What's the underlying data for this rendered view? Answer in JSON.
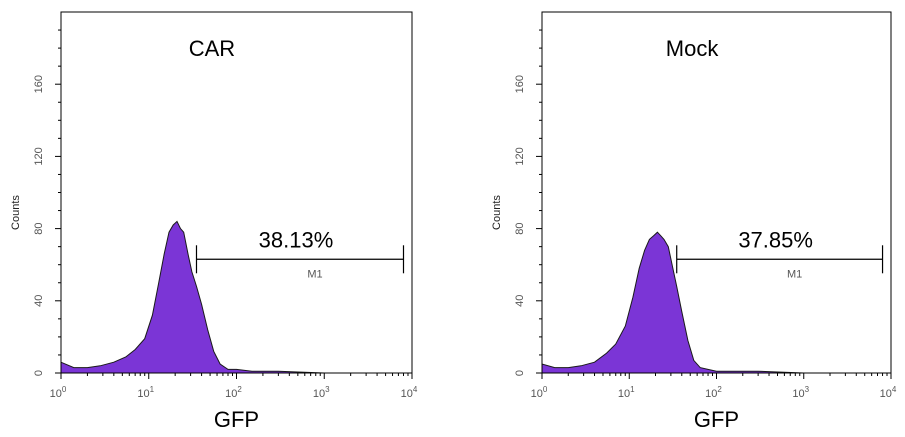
{
  "chart_data": [
    {
      "type": "area",
      "title": "CAR",
      "xlabel": "GFP",
      "ylabel": "Counts",
      "x_scale": "log",
      "xlim": [
        1,
        10000
      ],
      "ylim": [
        0,
        200
      ],
      "y_ticks": [
        "0",
        "40",
        "80",
        "120",
        "160"
      ],
      "x_ticks": [
        {
          "base": "10",
          "exp": "0"
        },
        {
          "base": "10",
          "exp": "1"
        },
        {
          "base": "10",
          "exp": "2"
        },
        {
          "base": "10",
          "exp": "3"
        },
        {
          "base": "10",
          "exp": "4"
        }
      ],
      "fill_color": "#7B35D6",
      "x": [
        1,
        1.4,
        2,
        2.8,
        4,
        5.5,
        7,
        9,
        11,
        13,
        15,
        17,
        19,
        21,
        23,
        25,
        28,
        31,
        35,
        40,
        47,
        55,
        65,
        80,
        100,
        150,
        300,
        1000,
        3000,
        8000
      ],
      "values": [
        6,
        3,
        3,
        4,
        6,
        9,
        13,
        19,
        32,
        50,
        66,
        78,
        82,
        84,
        80,
        78,
        66,
        56,
        48,
        38,
        24,
        12,
        5,
        2,
        2,
        1,
        1,
        0,
        0,
        0
      ],
      "gate": {
        "label": "M1",
        "percent": "38.13%",
        "x_start": 35,
        "x_end": 8000,
        "y": 63
      }
    },
    {
      "type": "area",
      "title": "Mock",
      "xlabel": "GFP",
      "ylabel": "Counts",
      "x_scale": "log",
      "xlim": [
        1,
        10000
      ],
      "ylim": [
        0,
        200
      ],
      "y_ticks": [
        "0",
        "40",
        "80",
        "120",
        "160"
      ],
      "x_ticks": [
        {
          "base": "10",
          "exp": "0"
        },
        {
          "base": "10",
          "exp": "1"
        },
        {
          "base": "10",
          "exp": "2"
        },
        {
          "base": "10",
          "exp": "3"
        },
        {
          "base": "10",
          "exp": "4"
        }
      ],
      "fill_color": "#7B35D6",
      "x": [
        1,
        1.4,
        2,
        2.8,
        4,
        5.5,
        7,
        9,
        11,
        13,
        15,
        17,
        19,
        21,
        23,
        25,
        28,
        31,
        35,
        40,
        47,
        55,
        65,
        80,
        100,
        150,
        300,
        1000,
        3000,
        8000
      ],
      "values": [
        5,
        3,
        3,
        4,
        6,
        11,
        16,
        26,
        42,
        58,
        68,
        74,
        76,
        78,
        76,
        74,
        70,
        60,
        48,
        34,
        18,
        7,
        3,
        2,
        1,
        1,
        1,
        0,
        0,
        0
      ],
      "gate": {
        "label": "M1",
        "percent": "37.85%",
        "x_start": 35,
        "x_end": 8000,
        "y": 63
      }
    }
  ]
}
